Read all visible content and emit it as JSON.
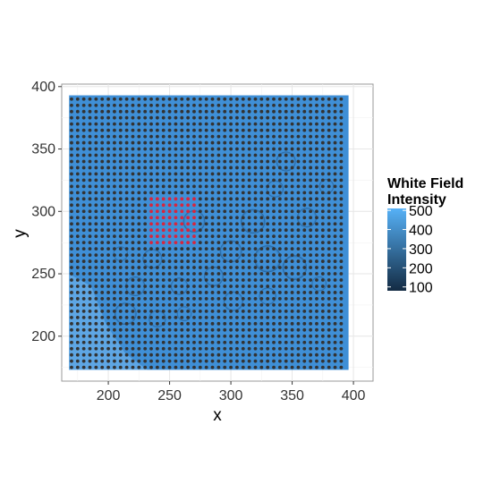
{
  "chart_data": {
    "type": "scatter",
    "title": "",
    "xlabel": "x",
    "ylabel": "y",
    "xlim": [
      162,
      416
    ],
    "ylim": [
      164,
      402
    ],
    "x_ticks": [
      200,
      250,
      300,
      350,
      400
    ],
    "y_ticks": [
      200,
      250,
      300,
      350,
      400
    ],
    "grid": true,
    "background": "microscope-image",
    "point_grid": {
      "x_start": 170,
      "x_end": 394,
      "x_step": 5,
      "y_start": 175,
      "y_end": 392,
      "y_step": 5
    },
    "highlight_region": {
      "x_range": [
        235,
        270
      ],
      "y_range": [
        275,
        310
      ],
      "color": "#d7263d"
    },
    "point_color": "#333333",
    "legend": {
      "title_lines": [
        "White Field",
        "Intensity"
      ],
      "position": "right",
      "min": 80,
      "max": 510,
      "ticks": [
        500,
        400,
        300,
        200,
        100
      ],
      "color_low": "#132b43",
      "color_high": "#56b1f7"
    }
  }
}
